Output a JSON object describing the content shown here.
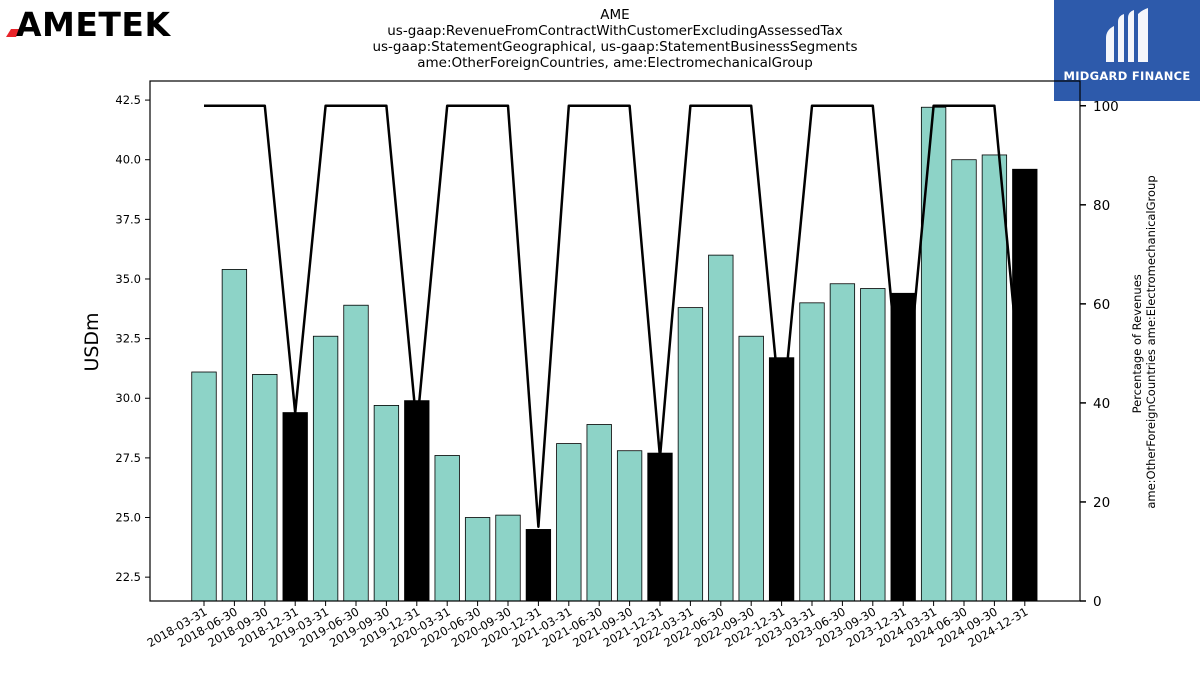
{
  "brand": {
    "left_logo": "AMETEK",
    "right_logo_text": "MIDGARD FINANCE",
    "right_logo_bg": "#2d5aab",
    "accent_red": "#e8242a"
  },
  "chart_data": {
    "type": "bar",
    "title_lines": [
      "AME",
      "us-gaap:RevenueFromContractWithCustomerExcludingAssessedTax",
      "us-gaap:StatementGeographical, us-gaap:StatementBusinessSegments",
      "ame:OtherForeignCountries, ame:ElectromechanicalGroup"
    ],
    "ylabel": "USDm",
    "ylabel_right": "Percentage of Revenues\name:OtherForeignCountries ame:ElectromechanicalGroup",
    "ylim": [
      21.5,
      43.3
    ],
    "yticks": [
      "22.5",
      "25.0",
      "27.5",
      "30.0",
      "32.5",
      "35.0",
      "37.5",
      "40.0",
      "42.5"
    ],
    "y2lim": [
      0,
      105
    ],
    "y2ticks": [
      "0",
      "20",
      "40",
      "60",
      "80",
      "100"
    ],
    "categories": [
      "2018-03-31",
      "2018-06-30",
      "2018-09-30",
      "2018-12-31",
      "2019-03-31",
      "2019-06-30",
      "2019-09-30",
      "2019-12-31",
      "2020-03-31",
      "2020-06-30",
      "2020-09-30",
      "2020-12-31",
      "2021-03-31",
      "2021-06-30",
      "2021-09-30",
      "2021-12-31",
      "2022-03-31",
      "2022-06-30",
      "2022-09-30",
      "2022-12-31",
      "2023-03-31",
      "2023-06-30",
      "2023-09-30",
      "2023-12-31",
      "2024-03-31",
      "2024-06-30",
      "2024-09-30",
      "2024-12-31"
    ],
    "series": [
      {
        "type": "bar",
        "values": [
          31.1,
          35.4,
          31.0,
          29.4,
          32.6,
          33.9,
          29.7,
          29.9,
          27.6,
          25.0,
          25.1,
          24.5,
          28.1,
          28.9,
          27.8,
          27.7,
          33.8,
          36.0,
          32.6,
          31.7,
          34.0,
          34.8,
          34.6,
          34.4,
          42.2,
          40.0,
          40.2,
          39.6
        ],
        "highlight": [
          false,
          false,
          false,
          true,
          false,
          false,
          false,
          true,
          false,
          false,
          false,
          true,
          false,
          false,
          false,
          true,
          false,
          false,
          false,
          true,
          false,
          false,
          false,
          true,
          false,
          false,
          false,
          true
        ],
        "colors": {
          "normal": "#8dd3c7",
          "highlight": "#000000"
        }
      },
      {
        "type": "line",
        "axis": "right",
        "values": [
          100,
          100,
          100,
          38,
          100,
          100,
          100,
          35,
          100,
          100,
          100,
          15,
          100,
          100,
          100,
          29,
          100,
          100,
          100,
          36,
          100,
          100,
          100,
          35,
          100,
          100,
          100,
          35
        ],
        "color": "#000000"
      }
    ],
    "grid": false,
    "legend": "none"
  }
}
